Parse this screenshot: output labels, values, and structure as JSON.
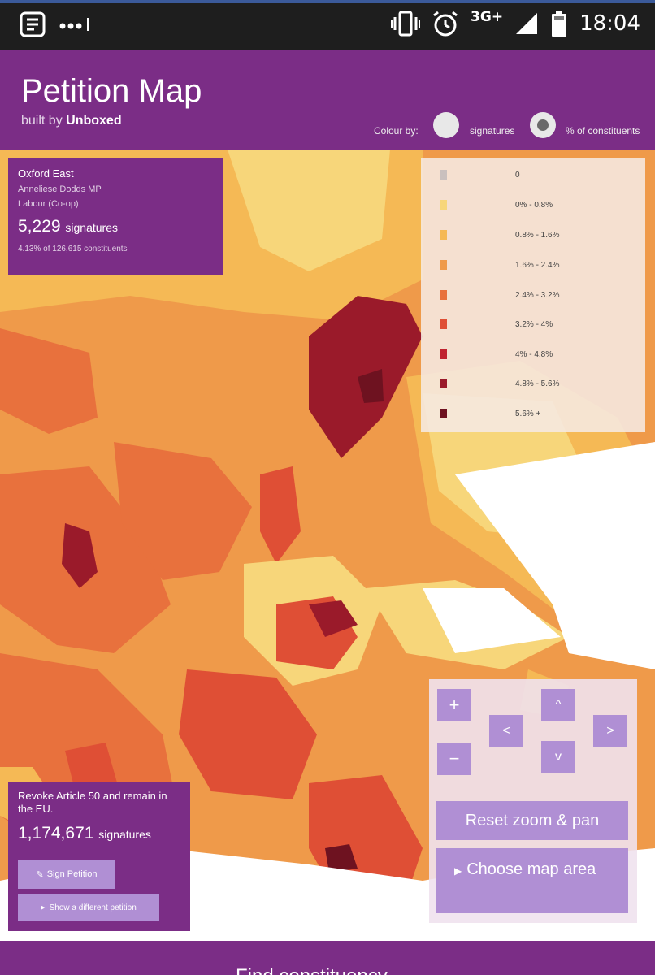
{
  "status_bar": {
    "time": "18:04",
    "network": "3G+",
    "icons": [
      "notes-icon",
      "dots-icon",
      "vibrate-icon",
      "alarm-icon",
      "signal-icon",
      "battery-icon"
    ]
  },
  "header": {
    "title": "Petition Map",
    "built_by_prefix": "built by",
    "built_by_name": "Unboxed",
    "colour_by_label": "Colour by:",
    "options": [
      {
        "label": "signatures",
        "selected": false
      },
      {
        "label": "% of constituents",
        "selected": true
      }
    ]
  },
  "info_box": {
    "constituency": "Oxford East",
    "mp": "Anneliese Dodds MP",
    "party": "Labour (Co-op)",
    "signatures": "5,229",
    "signatures_unit": "signatures",
    "percentage": "4.13% of 126,615 constituents"
  },
  "legend": [
    {
      "label": "0",
      "color": "#c9c0be"
    },
    {
      "label": "0% - 0.8%",
      "color": "#f7d67a"
    },
    {
      "label": "0.8% - 1.6%",
      "color": "#f5b955"
    },
    {
      "label": "1.6% - 2.4%",
      "color": "#ef9a4a"
    },
    {
      "label": "2.4% - 3.2%",
      "color": "#e8713d"
    },
    {
      "label": "3.2% - 4%",
      "color": "#df4f35"
    },
    {
      "label": "4% - 4.8%",
      "color": "#c0232f"
    },
    {
      "label": "4.8% - 5.6%",
      "color": "#9a1a2a"
    },
    {
      "label": "5.6% +",
      "color": "#6e1220"
    }
  ],
  "petition": {
    "title": "Revoke Article 50 and remain in the EU.",
    "signatures": "1,174,671",
    "signatures_unit": "signatures",
    "sign_button": "Sign Petition",
    "different_button": "Show a different petition"
  },
  "controls": {
    "zoom_in": "+",
    "zoom_out": "−",
    "up": "^",
    "down": "v",
    "left": "<",
    "right": ">",
    "reset": "Reset zoom & pan",
    "choose_area": "Choose map area"
  },
  "footer": {
    "text": "Find constituency"
  }
}
